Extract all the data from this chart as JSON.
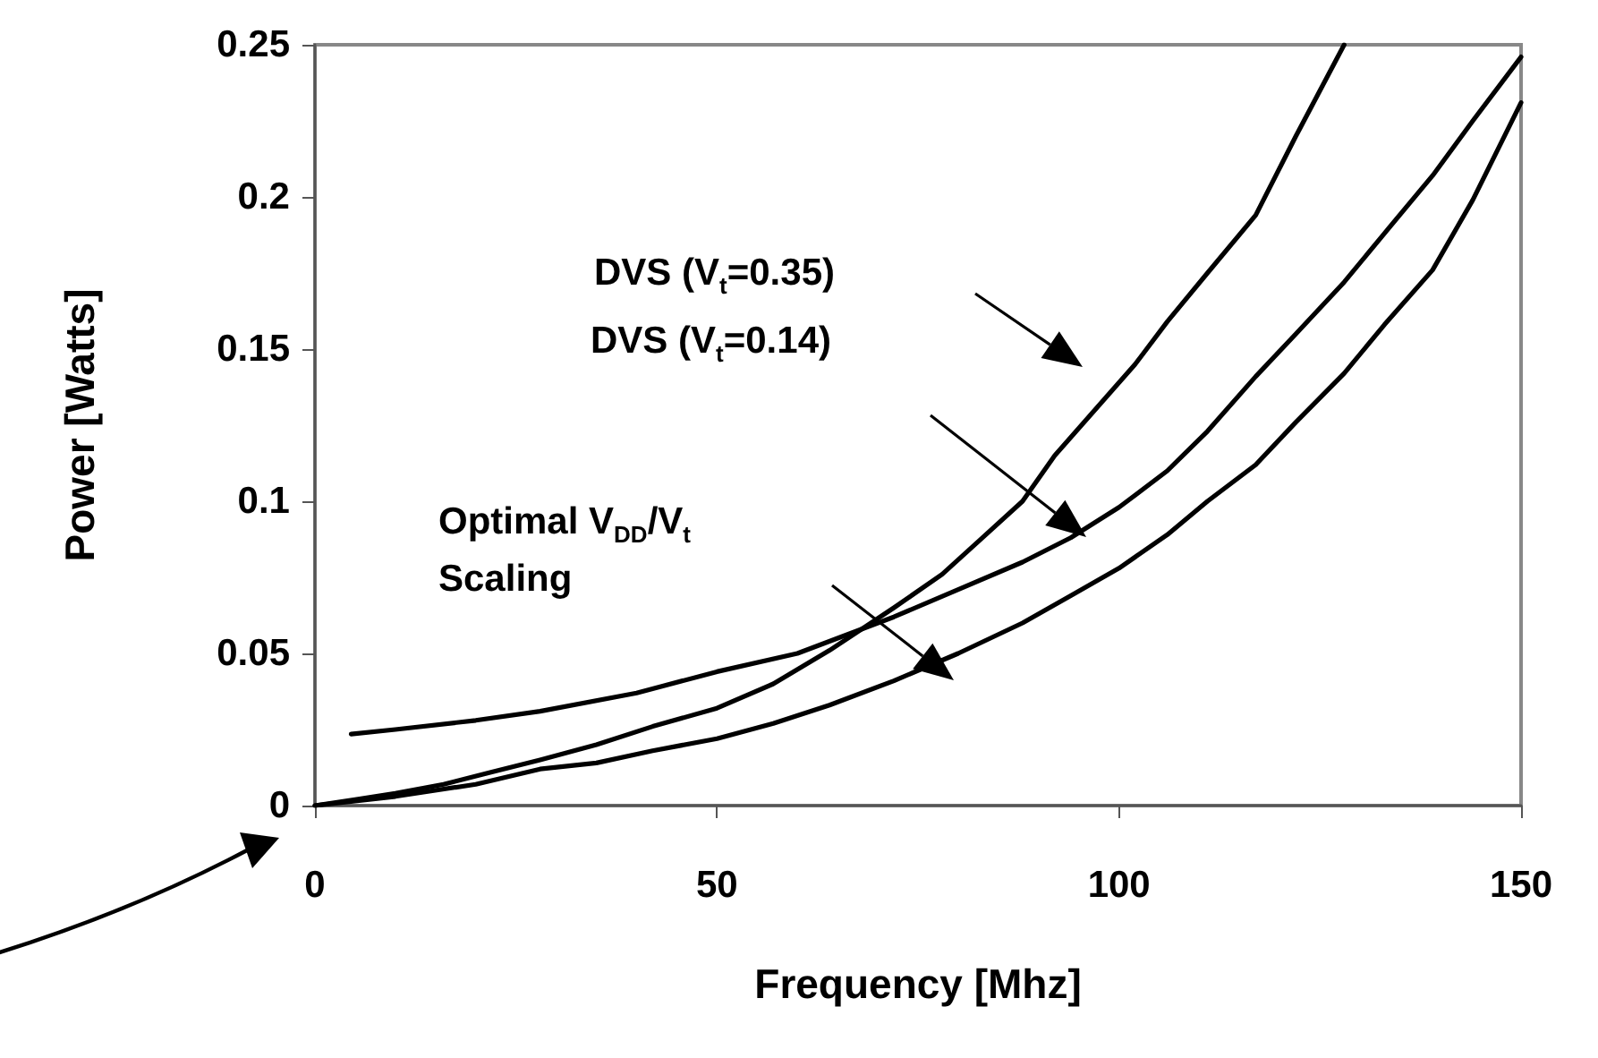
{
  "chart_data": {
    "type": "line",
    "xlabel": "Frequency [Mhz]",
    "ylabel": "Power [Watts]",
    "xlim": [
      0,
      150
    ],
    "xticks": [
      0,
      50,
      100,
      150
    ],
    "ylim": [
      0,
      0.25
    ],
    "yticks": [
      0,
      0.05,
      0.1,
      0.15,
      0.2,
      0.25
    ],
    "grid": false,
    "marker": "none",
    "line_style": "solid",
    "series": [
      {
        "color": "#000000",
        "x": [
          0,
          5,
          10,
          16,
          22,
          28,
          35,
          42,
          50,
          57,
          64,
          72,
          78,
          83,
          88,
          92,
          97,
          102,
          106,
          111,
          117,
          122,
          128
        ],
        "values": [
          0,
          0.002,
          0.004,
          0.007,
          0.011,
          0.015,
          0.02,
          0.026,
          0.032,
          0.04,
          0.051,
          0.065,
          0.076,
          0.088,
          0.1,
          0.115,
          0.13,
          0.145,
          0.159,
          0.175,
          0.194,
          0.22,
          0.25
        ]
      },
      {
        "color": "#000000",
        "x": [
          4.5,
          10,
          20,
          28,
          40,
          50,
          60,
          72,
          80,
          88,
          94,
          100,
          106,
          111,
          117,
          122,
          128,
          133,
          139,
          144,
          150
        ],
        "values": [
          0.0235,
          0.025,
          0.028,
          0.031,
          0.037,
          0.044,
          0.05,
          0.062,
          0.071,
          0.08,
          0.088,
          0.098,
          0.11,
          0.123,
          0.141,
          0.155,
          0.172,
          0.188,
          0.207,
          0.225,
          0.246
        ]
      },
      {
        "color": "#000000",
        "x": [
          0,
          10,
          20,
          28,
          35,
          42,
          50,
          57,
          64,
          72,
          80,
          88,
          94,
          100,
          106,
          111,
          117,
          122,
          128,
          133,
          139,
          144,
          150
        ],
        "values": [
          0,
          0.003,
          0.007,
          0.012,
          0.014,
          0.018,
          0.022,
          0.027,
          0.033,
          0.041,
          0.05,
          0.06,
          0.069,
          0.078,
          0.089,
          0.1,
          0.112,
          0.126,
          0.142,
          0.158,
          0.176,
          0.199,
          0.231
        ]
      }
    ],
    "annotations": [
      "DVS (V$_{t}$=0.35)",
      "DVS (V$_{t}$=0.14)",
      "Optimal V$_{DD}$/V$_{t}$ Scaling"
    ]
  }
}
